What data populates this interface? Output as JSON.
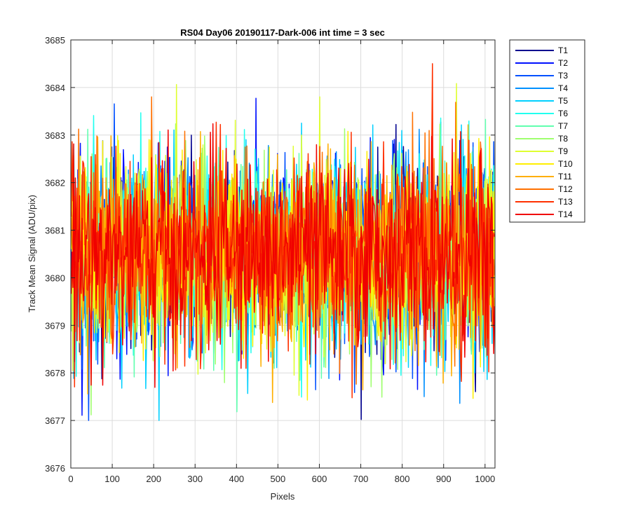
{
  "chart_data": {
    "type": "line",
    "title": "RS04 Day06 20190117-Dark-006 int time = 3 sec",
    "xlabel": "Pixels",
    "ylabel": "Track Mean Signal (ADU/pix)",
    "xlim": [
      0,
      1024
    ],
    "ylim": [
      3676,
      3685
    ],
    "xticks": [
      0,
      100,
      200,
      300,
      400,
      500,
      600,
      700,
      800,
      900,
      1000
    ],
    "yticks": [
      3676,
      3677,
      3678,
      3679,
      3680,
      3681,
      3682,
      3683,
      3684,
      3685
    ],
    "grid": true,
    "legend_position": "outside-right",
    "x_range": [
      1,
      1024
    ],
    "noise_mean": 3680.5,
    "noise_sd": 1.0,
    "series": [
      {
        "name": "T1",
        "color": "#00008f"
      },
      {
        "name": "T2",
        "color": "#0010ff"
      },
      {
        "name": "T3",
        "color": "#0050ff"
      },
      {
        "name": "T4",
        "color": "#0090ff"
      },
      {
        "name": "T5",
        "color": "#00d0ff"
      },
      {
        "name": "T6",
        "color": "#20ffef"
      },
      {
        "name": "T7",
        "color": "#60ffaf"
      },
      {
        "name": "T8",
        "color": "#9fff6f"
      },
      {
        "name": "T9",
        "color": "#dfff30"
      },
      {
        "name": "T10",
        "color": "#ffef00"
      },
      {
        "name": "T11",
        "color": "#ffaf00"
      },
      {
        "name": "T12",
        "color": "#ff7000"
      },
      {
        "name": "T13",
        "color": "#ff3000"
      },
      {
        "name": "T14",
        "color": "#f00000"
      }
    ]
  }
}
